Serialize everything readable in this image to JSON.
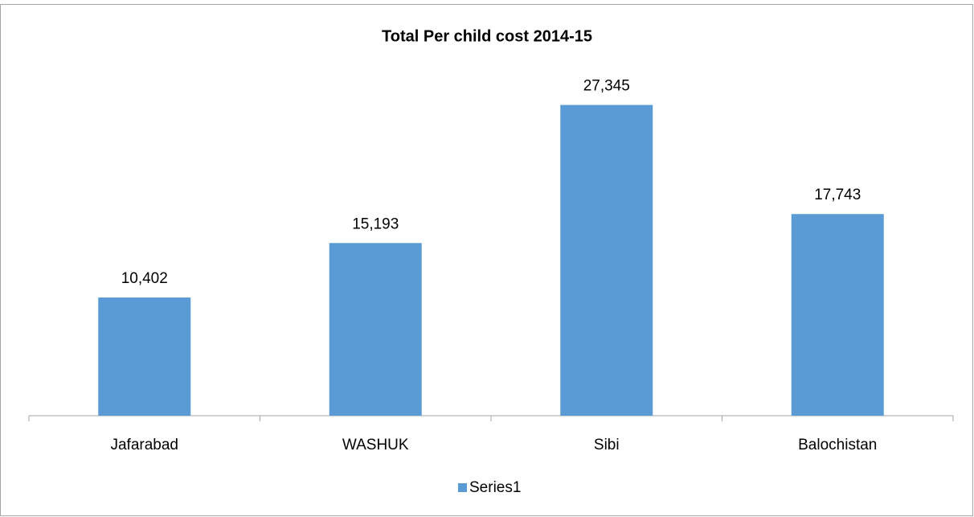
{
  "chart_data": {
    "type": "bar",
    "title": "Total Per child cost 2014-15",
    "categories": [
      "Jafarabad",
      "WASHUK",
      "Sibi",
      "Balochistan"
    ],
    "series": [
      {
        "name": "Series1",
        "color": "#5b9bd5",
        "values": [
          10402,
          15193,
          27345,
          17743
        ],
        "value_labels": [
          "10,402",
          "15,193",
          "27,345",
          "17,743"
        ]
      }
    ],
    "ylim": [
      0,
      30000
    ],
    "legend": "bottom"
  }
}
